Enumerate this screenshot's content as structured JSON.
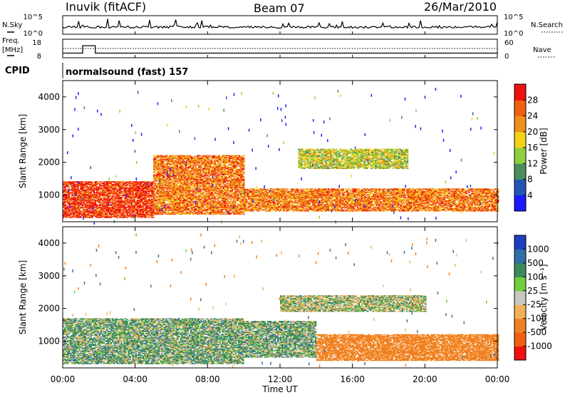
{
  "header": {
    "station": "Inuvik (fitACF)",
    "beam": "Beam 07",
    "date": "26/Mar/2010"
  },
  "strip": {
    "nsky_label": "N.Sky",
    "nsky_ticks": [
      "10^5",
      "10^0"
    ],
    "nsearch_label": "N.Search",
    "nsearch_ticks": [
      "10^5",
      "10^0"
    ],
    "freq_label_line1": "Freq.",
    "freq_label_line2": "[MHz]",
    "freq_ticks": [
      "18",
      "8"
    ],
    "nave_label": "Nave",
    "nave_ticks": [
      "60",
      "0"
    ],
    "cpid_label": "CPID",
    "cpid_text": "normalsound (fast) 157"
  },
  "panels": {
    "ylabel": "Slant Range [km]",
    "xlabel": "Time UT",
    "ytick_labels": [
      "1000",
      "2000",
      "3000",
      "4000"
    ],
    "xtick_labels": [
      "00:00",
      "04:00",
      "08:00",
      "12:00",
      "16:00",
      "20:00",
      "00:00"
    ]
  },
  "colorbars": {
    "power": {
      "label": "Power [dB]",
      "tick_labels": [
        "4",
        "8",
        "12",
        "16",
        "20",
        "24",
        "28"
      ],
      "colors": [
        "#1a1aff",
        "#2255b5",
        "#4a8e5e",
        "#8fcf3f",
        "#f5d21a",
        "#f0901a",
        "#f06010",
        "#f01010"
      ]
    },
    "velocity": {
      "label": "Velocity [m s⁻¹]",
      "tick_labels": [
        "1000",
        "500",
        "100",
        "25",
        "-25",
        "-100",
        "-500",
        "-1000"
      ],
      "colors": [
        "#1a3fbf",
        "#2f6ea6",
        "#3c8a5c",
        "#6fcf3c",
        "#c8c8c0",
        "#f5b05a",
        "#f08020",
        "#f06010",
        "#f01010"
      ]
    }
  },
  "chart_data": {
    "type": "heatmap",
    "title": "Inuvik (fitACF)  Beam 07  26/Mar/2010",
    "xlabel": "Time UT",
    "ylabel": "Slant Range [km]",
    "x_range": [
      "00:00",
      "24:00"
    ],
    "ylim": [
      180,
      4500
    ],
    "xticks": [
      "00:00",
      "04:00",
      "08:00",
      "12:00",
      "16:00",
      "20:00",
      "00:00"
    ],
    "yticks": [
      1000,
      2000,
      3000,
      4000
    ],
    "series": [
      {
        "name": "Power",
        "unit": "dB",
        "color_scale": [
          4,
          8,
          12,
          16,
          20,
          24,
          28
        ],
        "echo_bands": [
          {
            "t_start_h": 0.0,
            "t_end_h": 5.0,
            "range_lo_km": 300,
            "range_hi_km": 1400,
            "dominant_value_db": 28
          },
          {
            "t_start_h": 5.0,
            "t_end_h": 10.0,
            "range_lo_km": 400,
            "range_hi_km": 2200,
            "dominant_value_db": 24
          },
          {
            "t_start_h": 10.0,
            "t_end_h": 24.0,
            "range_lo_km": 500,
            "range_hi_km": 1200,
            "dominant_value_db": 24
          },
          {
            "t_start_h": 13.0,
            "t_end_h": 19.0,
            "range_lo_km": 1800,
            "range_hi_km": 2400,
            "dominant_value_db": 16
          }
        ]
      },
      {
        "name": "Velocity",
        "unit": "m s^-1",
        "color_scale": [
          1000,
          500,
          100,
          25,
          -25,
          -100,
          -500,
          -1000
        ],
        "echo_bands": [
          {
            "t_start_h": 0.0,
            "t_end_h": 10.0,
            "range_lo_km": 300,
            "range_hi_km": 1700,
            "dominant_value_ms": 100
          },
          {
            "t_start_h": 10.0,
            "t_end_h": 14.0,
            "range_lo_km": 500,
            "range_hi_km": 1600,
            "dominant_value_ms": 100
          },
          {
            "t_start_h": 14.0,
            "t_end_h": 24.0,
            "range_lo_km": 400,
            "range_hi_km": 1200,
            "dominant_value_ms": -500
          },
          {
            "t_start_h": 12.0,
            "t_end_h": 20.0,
            "range_lo_km": 1900,
            "range_hi_km": 2400,
            "dominant_value_ms": 0
          }
        ]
      }
    ],
    "freq_mhz": [
      {
        "t_start_h": 0.0,
        "t_end_h": 1.1,
        "value": 10.5
      },
      {
        "t_start_h": 1.1,
        "t_end_h": 1.8,
        "value": 14.5
      },
      {
        "t_start_h": 1.8,
        "t_end_h": 24.0,
        "value": 10.5
      }
    ],
    "nave_nominal": 30
  }
}
